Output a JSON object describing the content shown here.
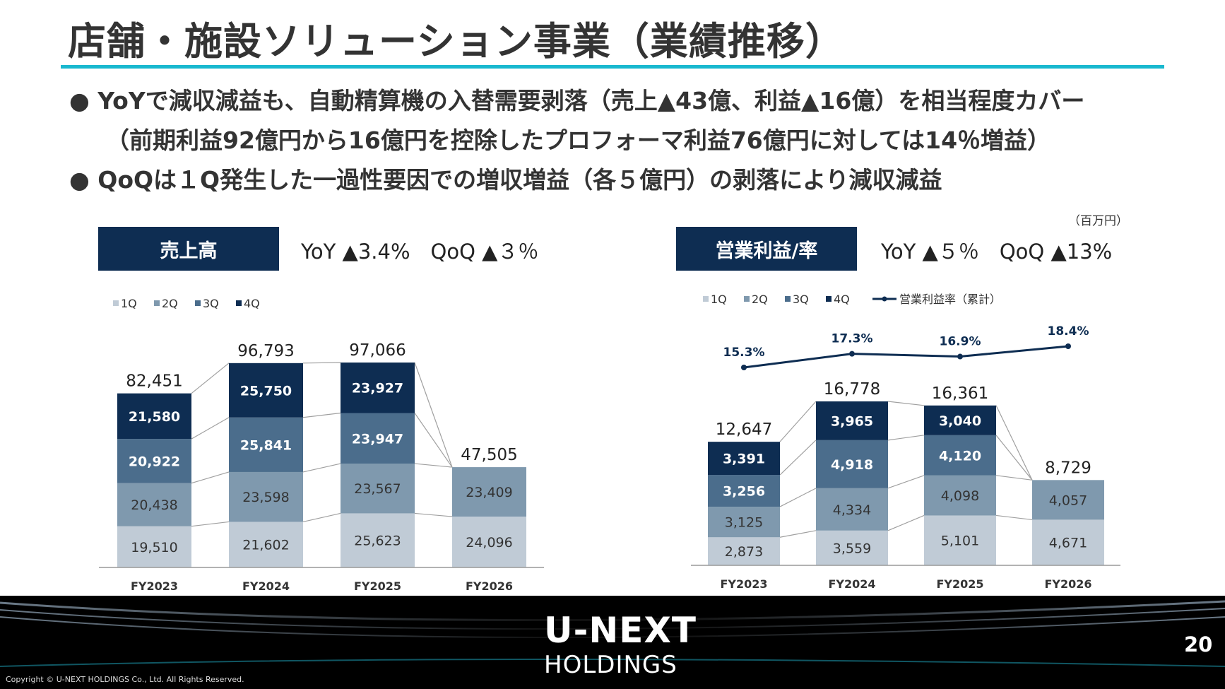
{
  "title": "店舗・施設ソリューション事業（業績推移）",
  "bullets": [
    "● YoYで減収減益も、自動精算機の入替需要剥落（売上▲43億、利益▲16億）を相当程度カバー",
    "（前期利益92億円から16億円を控除したプロフォーマ利益76億円に対しては14％増益）",
    "● QoQは１Q発生した一過性要因での増収増益（各５億円）の剥落により減収減益"
  ],
  "unit_note": "（百万円）",
  "colors": {
    "q1": "#c0cbd6",
    "q2": "#7f99ae",
    "q3": "#4b6d8c",
    "q4": "#0e2d52",
    "accent": "#19b8cf",
    "line": "#0e2d52"
  },
  "chart_data": [
    {
      "type": "bar",
      "stacked": true,
      "chip_label": "売上高",
      "yoy_qoq": "YoY ▲3.4%　QoQ ▲３％",
      "categories": [
        "FY2023",
        "FY2024",
        "FY2025",
        "FY2026"
      ],
      "series": [
        {
          "name": "1Q",
          "values": [
            19510,
            21602,
            25623,
            24096
          ]
        },
        {
          "name": "2Q",
          "values": [
            20438,
            23598,
            23567,
            23409
          ]
        },
        {
          "name": "3Q",
          "values": [
            20922,
            25841,
            23947,
            null
          ]
        },
        {
          "name": "4Q",
          "values": [
            21580,
            25750,
            23927,
            null
          ]
        }
      ],
      "totals": [
        82451,
        96793,
        97066,
        47505
      ],
      "legend": "top-left"
    },
    {
      "type": "bar",
      "stacked": true,
      "chip_label": "営業利益/率",
      "yoy_qoq": "YoY ▲５％　QoQ ▲13%",
      "categories": [
        "FY2023",
        "FY2024",
        "FY2025",
        "FY2026"
      ],
      "series": [
        {
          "name": "1Q",
          "values": [
            2873,
            3559,
            5101,
            4671
          ]
        },
        {
          "name": "2Q",
          "values": [
            3125,
            4334,
            4098,
            4057
          ]
        },
        {
          "name": "3Q",
          "values": [
            3256,
            4918,
            4120,
            null
          ]
        },
        {
          "name": "4Q",
          "values": [
            3391,
            3965,
            3040,
            null
          ]
        }
      ],
      "totals": [
        12647,
        16778,
        16361,
        8729
      ],
      "line_series": {
        "name": "営業利益率（累計）",
        "values": [
          15.3,
          17.3,
          16.9,
          18.4
        ],
        "labels": [
          "15.3%",
          "17.3%",
          "16.9%",
          "18.4%"
        ]
      },
      "legend": "top-left"
    }
  ],
  "footer": {
    "logo_main": "U-NEXT",
    "logo_sub": "HOLDINGS",
    "page_number": "20",
    "copyright": "Copyright © U-NEXT HOLDINGS Co., Ltd. All Rights Reserved."
  }
}
